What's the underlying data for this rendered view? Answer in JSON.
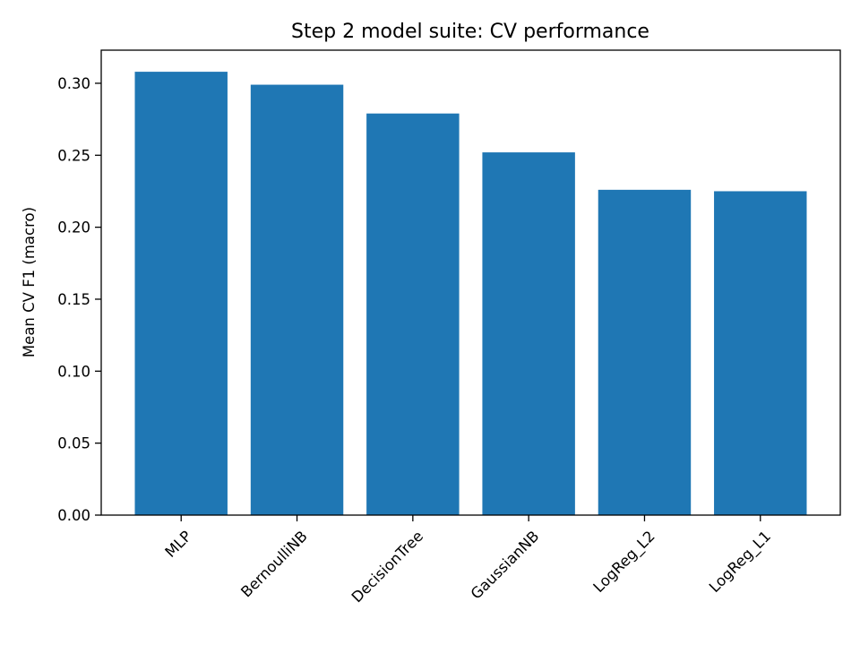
{
  "chart_data": {
    "type": "bar",
    "title": "Step 2 model suite: CV performance",
    "xlabel": "",
    "ylabel": "Mean CV F1 (macro)",
    "categories": [
      "MLP",
      "BernoulliNB",
      "DecisionTree",
      "GaussianNB",
      "LogReg_L2",
      "LogReg_L1"
    ],
    "values": [
      0.308,
      0.299,
      0.279,
      0.252,
      0.226,
      0.225
    ],
    "ylim": [
      0,
      0.323
    ],
    "yticks": [
      0.0,
      0.05,
      0.1,
      0.15,
      0.2,
      0.25,
      0.3
    ],
    "ytick_labels": [
      "0.00",
      "0.05",
      "0.10",
      "0.15",
      "0.20",
      "0.25",
      "0.30"
    ],
    "bar_color": "#1f77b4",
    "grid": false,
    "legend": "none"
  }
}
